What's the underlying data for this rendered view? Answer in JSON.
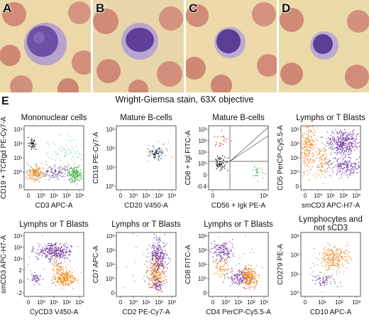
{
  "top_panels": [
    "A",
    "B",
    "C",
    "D"
  ],
  "caption": "Wright-Giemsa stain, 63X objective",
  "panel_e_letter": "E",
  "colors": {
    "black": "#1a1a1a",
    "orange": "#f08a1c",
    "purple": "#7a3fa8",
    "green": "#4bb84b",
    "teal": "#7fd3c8",
    "grey": "#9a9a9a",
    "red": "#c0392b",
    "blue": "#2b5f8a"
  },
  "plots": [
    {
      "title": "Mononuclear cells",
      "xlabel": "CD3 APC-A",
      "ylabel": "CD19 + TCRgd PE-Cy7-A",
      "xticks": [
        "0",
        "10⁰",
        "10¹",
        "10²",
        "10³"
      ],
      "yticks": [
        "10³",
        "10²",
        "10¹",
        "10⁰",
        "0"
      ]
    },
    {
      "title": "Mature B-cells",
      "xlabel": "CD20 V450-A",
      "ylabel": "CD19 PE-Cy7-A",
      "xticks": [
        "0",
        "10⁰",
        "10¹",
        "10²",
        "10³"
      ],
      "yticks": [
        "10³",
        "10²",
        "10¹",
        "10⁰"
      ]
    },
    {
      "title": "Mature B-cells",
      "xlabel": "CD56 + Igk PE-A",
      "ylabel": "CD8 + Igl FITC-A",
      "xticks": [
        "0",
        "10²"
      ],
      "yticks": [
        "10³",
        "10²",
        "10¹",
        "10⁰",
        "0",
        "-0.4"
      ]
    },
    {
      "title": "Lymphs or T Blasts",
      "xlabel": "smCD3 APC-H7-A",
      "ylabel": "CD5 PerCP-Cy5.5-A",
      "xticks": [
        "0",
        "10⁰",
        "10¹",
        "10²",
        "10³"
      ],
      "yticks": [
        "10³",
        "10²",
        "10¹",
        "10⁰",
        "0"
      ]
    },
    {
      "title": "Lymphs or T Blasts",
      "xlabel": "CyCD3 V450-A",
      "ylabel": "smCD3 APC-H7-A",
      "xticks": [
        "0",
        "10⁰",
        "10¹",
        "10²",
        "10³"
      ],
      "yticks": [
        "10³",
        "10²",
        "10¹",
        "2",
        "0",
        "-2"
      ]
    },
    {
      "title": "Lymphs or T Blasts",
      "xlabel": "CD2 PE-Cy7-A",
      "ylabel": "CD7 APC-A",
      "xticks": [
        "0",
        "10⁰",
        "10¹",
        "10²",
        "10³"
      ],
      "yticks": [
        "10³",
        "10²",
        "10¹",
        "10⁰",
        "0"
      ]
    },
    {
      "title": "Lymphs or T Blasts",
      "xlabel": "CD4 PerCP-Cy5.5-A",
      "ylabel": "CD8 FITC-A",
      "xticks": [
        "0",
        "10⁰",
        "10¹",
        "10²",
        "10³"
      ],
      "yticks": [
        "10³",
        "10²",
        "10¹",
        "10⁰",
        "0"
      ]
    },
    {
      "title": "Lymphocytes and",
      "title2": "not sCD3",
      "xlabel": "CD10 APC-A",
      "ylabel": "CD279 PE-A",
      "xticks": [
        "0",
        "10¹",
        "10²",
        "10³"
      ],
      "yticks": [
        "10³",
        "10²",
        "10¹",
        "10⁰"
      ]
    }
  ]
}
